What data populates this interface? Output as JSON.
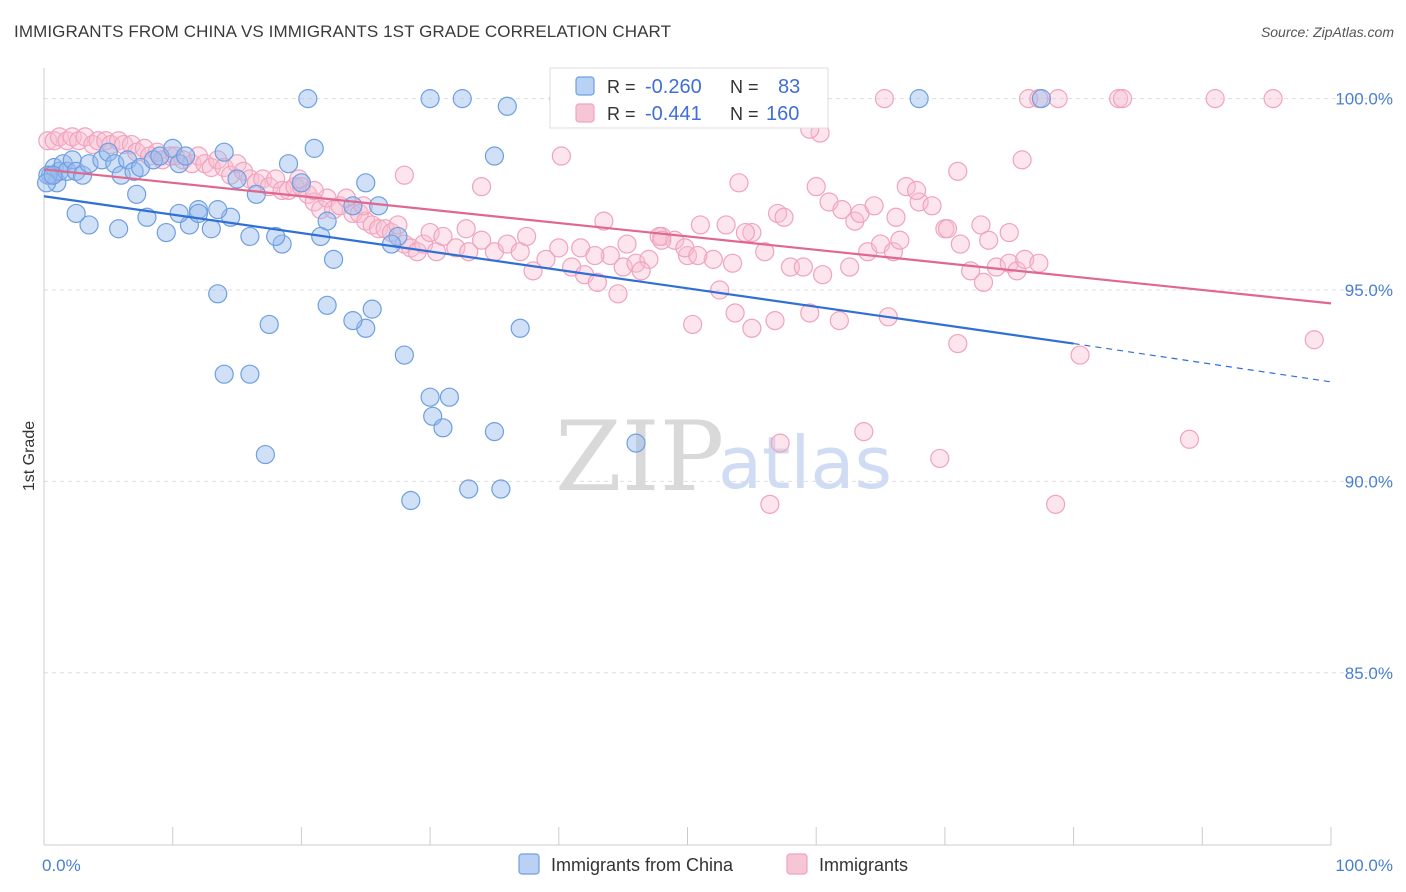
{
  "title": "IMMIGRANTS FROM CHINA VS IMMIGRANTS 1ST GRADE CORRELATION CHART",
  "source": "Source: ZipAtlas.com",
  "watermark": {
    "zip": "ZIP",
    "atlas": "atlas"
  },
  "colors": {
    "blue": "#6f9fe0",
    "blue_line": "#2f6fd6",
    "pink": "#f0a3bd",
    "pink_line": "#e0678f",
    "axis_text": "#4a7fd0"
  },
  "legend": {
    "rows": [
      {
        "r_label": "R =",
        "r_value": "-0.260",
        "n_label": "N =",
        "n_value": "83"
      },
      {
        "r_label": "R =",
        "r_value": "-0.441",
        "n_label": "N =",
        "n_value": "160"
      }
    ]
  },
  "bottom_legend": [
    "Immigrants from China",
    "Immigrants"
  ],
  "chart_data": {
    "type": "scatter",
    "xlabel": "",
    "ylabel": "1st Grade",
    "xlim": [
      0,
      100
    ],
    "ylim": [
      80.5,
      100.8
    ],
    "x_tick_labels": [
      {
        "value": 0,
        "label": "0.0%"
      },
      {
        "value": 100,
        "label": "100.0%"
      }
    ],
    "y_tick_labels": [
      {
        "value": 100,
        "label": "100.0%"
      },
      {
        "value": 95,
        "label": "95.0%"
      },
      {
        "value": 90,
        "label": "90.0%"
      },
      {
        "value": 85,
        "label": "85.0%"
      }
    ],
    "grid": true,
    "series": [
      {
        "name": "Immigrants from China",
        "r": -0.26,
        "n": 83,
        "trend": {
          "x0": 0,
          "y0": 97.45,
          "x1": 80,
          "y1": 93.6,
          "dashed_to_x": 100,
          "dashed_to_y": 92.6
        },
        "points": [
          [
            0.5,
            98.0
          ],
          [
            0.8,
            98.2
          ],
          [
            1.0,
            97.8
          ],
          [
            1.2,
            98.1
          ],
          [
            1.5,
            98.3
          ],
          [
            1.8,
            98.1
          ],
          [
            2.2,
            98.4
          ],
          [
            2.5,
            98.1
          ],
          [
            3.0,
            98.0
          ],
          [
            3.5,
            98.3
          ],
          [
            4.5,
            98.4
          ],
          [
            5.0,
            98.6
          ],
          [
            5.5,
            98.3
          ],
          [
            6.0,
            98.0
          ],
          [
            6.5,
            98.4
          ],
          [
            7.0,
            98.1
          ],
          [
            7.5,
            98.2
          ],
          [
            8.5,
            98.4
          ],
          [
            9.0,
            98.5
          ],
          [
            10.0,
            98.7
          ],
          [
            10.5,
            98.3
          ],
          [
            11.0,
            98.5
          ],
          [
            12.0,
            97.1
          ],
          [
            14.0,
            98.6
          ],
          [
            3.5,
            96.7
          ],
          [
            5.8,
            96.6
          ],
          [
            7.2,
            97.5
          ],
          [
            8.0,
            96.9
          ],
          [
            9.5,
            96.5
          ],
          [
            11.3,
            96.7
          ],
          [
            13.0,
            96.6
          ],
          [
            14.5,
            96.9
          ],
          [
            16.0,
            96.4
          ],
          [
            18.5,
            96.2
          ],
          [
            20.0,
            97.8
          ],
          [
            22.0,
            96.8
          ],
          [
            25.0,
            97.8
          ],
          [
            26.0,
            97.2
          ],
          [
            27.5,
            96.4
          ],
          [
            15.0,
            97.9
          ],
          [
            16.5,
            97.5
          ],
          [
            19.0,
            98.3
          ],
          [
            21.0,
            98.7
          ],
          [
            18.0,
            96.4
          ],
          [
            21.5,
            96.4
          ],
          [
            22.5,
            95.8
          ],
          [
            22.0,
            94.6
          ],
          [
            25.0,
            94.0
          ],
          [
            25.5,
            94.5
          ],
          [
            24.0,
            94.2
          ],
          [
            13.5,
            94.9
          ],
          [
            17.5,
            94.1
          ],
          [
            14.0,
            92.8
          ],
          [
            16.0,
            92.8
          ],
          [
            17.2,
            90.7
          ],
          [
            28.0,
            93.3
          ],
          [
            30.0,
            92.2
          ],
          [
            31.5,
            92.2
          ],
          [
            30.2,
            91.7
          ],
          [
            31.0,
            91.4
          ],
          [
            35.0,
            91.3
          ],
          [
            37.0,
            94.0
          ],
          [
            46.0,
            91.0
          ],
          [
            33.0,
            89.8
          ],
          [
            35.5,
            89.8
          ],
          [
            28.5,
            89.5
          ],
          [
            35.0,
            98.5
          ],
          [
            20.5,
            100.0
          ],
          [
            30.0,
            100.0
          ],
          [
            32.5,
            100.0
          ],
          [
            36.0,
            99.8
          ],
          [
            40.0,
            100.0
          ],
          [
            68.0,
            100.0
          ],
          [
            77.5,
            100.0
          ],
          [
            24.0,
            97.2
          ],
          [
            27.0,
            96.2
          ],
          [
            12.0,
            97.0
          ],
          [
            13.5,
            97.1
          ],
          [
            10.5,
            97.0
          ],
          [
            2.5,
            97.0
          ],
          [
            0.3,
            98.0
          ],
          [
            0.2,
            97.8
          ],
          [
            0.7,
            98.0
          ]
        ]
      },
      {
        "name": "Immigrants",
        "r": -0.441,
        "n": 160,
        "trend": {
          "x0": 0,
          "y0": 98.15,
          "x1": 100,
          "y1": 94.65
        },
        "points": [
          [
            0.3,
            98.9
          ],
          [
            0.8,
            98.9
          ],
          [
            1.2,
            99.0
          ],
          [
            1.8,
            98.9
          ],
          [
            2.2,
            99.0
          ],
          [
            2.7,
            98.9
          ],
          [
            3.2,
            99.0
          ],
          [
            3.8,
            98.8
          ],
          [
            4.2,
            98.9
          ],
          [
            4.8,
            98.9
          ],
          [
            5.2,
            98.8
          ],
          [
            5.8,
            98.9
          ],
          [
            6.2,
            98.8
          ],
          [
            6.8,
            98.8
          ],
          [
            7.2,
            98.6
          ],
          [
            7.8,
            98.7
          ],
          [
            8.2,
            98.5
          ],
          [
            8.8,
            98.6
          ],
          [
            9.2,
            98.4
          ],
          [
            9.8,
            98.5
          ],
          [
            10.2,
            98.5
          ],
          [
            10.8,
            98.4
          ],
          [
            11.5,
            98.3
          ],
          [
            12.0,
            98.5
          ],
          [
            12.5,
            98.3
          ],
          [
            13.0,
            98.2
          ],
          [
            13.5,
            98.4
          ],
          [
            14.0,
            98.2
          ],
          [
            14.5,
            98.0
          ],
          [
            15.0,
            98.3
          ],
          [
            15.5,
            98.1
          ],
          [
            16.0,
            97.9
          ],
          [
            16.5,
            97.8
          ],
          [
            17.0,
            97.9
          ],
          [
            17.5,
            97.7
          ],
          [
            18.0,
            97.9
          ],
          [
            18.5,
            97.6
          ],
          [
            19.0,
            97.6
          ],
          [
            19.5,
            97.7
          ],
          [
            20.0,
            97.7
          ],
          [
            20.5,
            97.5
          ],
          [
            21.0,
            97.3
          ],
          [
            21.5,
            97.1
          ],
          [
            22.0,
            97.4
          ],
          [
            22.5,
            97.1
          ],
          [
            23.0,
            97.2
          ],
          [
            23.5,
            97.4
          ],
          [
            24.0,
            97.0
          ],
          [
            24.5,
            97.0
          ],
          [
            25.0,
            96.8
          ],
          [
            25.5,
            96.7
          ],
          [
            26.0,
            96.6
          ],
          [
            26.5,
            96.6
          ],
          [
            27.0,
            96.5
          ],
          [
            27.5,
            96.7
          ],
          [
            28.0,
            96.2
          ],
          [
            28.5,
            96.1
          ],
          [
            29.0,
            96.0
          ],
          [
            29.5,
            96.2
          ],
          [
            30.0,
            96.5
          ],
          [
            30.5,
            96.0
          ],
          [
            31.0,
            96.4
          ],
          [
            32.0,
            96.1
          ],
          [
            33.0,
            96.0
          ],
          [
            34.0,
            96.3
          ],
          [
            35.0,
            96.0
          ],
          [
            36.0,
            96.2
          ],
          [
            37.0,
            96.0
          ],
          [
            38.0,
            95.5
          ],
          [
            39.0,
            95.8
          ],
          [
            40.0,
            96.1
          ],
          [
            41.0,
            95.6
          ],
          [
            42.0,
            95.4
          ],
          [
            43.0,
            95.2
          ],
          [
            44.0,
            95.9
          ],
          [
            45.0,
            95.6
          ],
          [
            46.0,
            95.7
          ],
          [
            47.0,
            95.8
          ],
          [
            48.0,
            96.4
          ],
          [
            49.0,
            96.3
          ],
          [
            50.0,
            95.9
          ],
          [
            51.0,
            96.7
          ],
          [
            52.0,
            95.8
          ],
          [
            53.0,
            96.7
          ],
          [
            54.0,
            97.8
          ],
          [
            55.0,
            96.5
          ],
          [
            56.0,
            96.0
          ],
          [
            57.0,
            97.0
          ],
          [
            58.0,
            95.6
          ],
          [
            59.0,
            95.6
          ],
          [
            60.0,
            97.7
          ],
          [
            61.0,
            97.3
          ],
          [
            62.0,
            97.1
          ],
          [
            63.0,
            96.8
          ],
          [
            64.0,
            96.0
          ],
          [
            65.0,
            96.2
          ],
          [
            66.0,
            96.0
          ],
          [
            67.0,
            97.7
          ],
          [
            68.0,
            97.3
          ],
          [
            69.0,
            97.2
          ],
          [
            70.0,
            96.6
          ],
          [
            71.0,
            98.1
          ],
          [
            72.0,
            95.5
          ],
          [
            73.0,
            95.2
          ],
          [
            74.0,
            95.6
          ],
          [
            75.0,
            95.7
          ],
          [
            76.0,
            98.4
          ],
          [
            34.0,
            97.7
          ],
          [
            40.2,
            98.5
          ],
          [
            32.8,
            96.6
          ],
          [
            37.5,
            96.4
          ],
          [
            43.5,
            96.8
          ],
          [
            44.6,
            94.9
          ],
          [
            47.8,
            96.4
          ],
          [
            50.4,
            94.1
          ],
          [
            52.5,
            95.0
          ],
          [
            53.7,
            94.4
          ],
          [
            55.0,
            94.0
          ],
          [
            56.8,
            94.2
          ],
          [
            57.5,
            96.9
          ],
          [
            59.5,
            94.4
          ],
          [
            61.8,
            94.2
          ],
          [
            65.6,
            94.3
          ],
          [
            66.5,
            96.3
          ],
          [
            67.8,
            97.6
          ],
          [
            70.2,
            96.6
          ],
          [
            72.8,
            96.7
          ],
          [
            73.4,
            96.3
          ],
          [
            75.6,
            95.5
          ],
          [
            75.0,
            96.5
          ],
          [
            76.2,
            95.8
          ],
          [
            77.3,
            95.7
          ],
          [
            45.3,
            96.2
          ],
          [
            46.4,
            95.5
          ],
          [
            48.0,
            96.3
          ],
          [
            49.8,
            96.1
          ],
          [
            50.8,
            95.9
          ],
          [
            41.7,
            96.1
          ],
          [
            42.8,
            95.9
          ],
          [
            53.5,
            95.7
          ],
          [
            54.5,
            96.5
          ],
          [
            60.5,
            95.4
          ],
          [
            62.6,
            95.6
          ],
          [
            63.4,
            97.0
          ],
          [
            64.5,
            97.2
          ],
          [
            66.2,
            96.9
          ],
          [
            71.2,
            96.2
          ],
          [
            80.5,
            93.3
          ],
          [
            98.7,
            93.7
          ],
          [
            71.0,
            93.6
          ],
          [
            57.2,
            91.0
          ],
          [
            63.7,
            91.3
          ],
          [
            69.6,
            90.6
          ],
          [
            89.0,
            91.1
          ],
          [
            56.4,
            89.4
          ],
          [
            78.6,
            89.4
          ],
          [
            65.3,
            100.0
          ],
          [
            76.5,
            100.0
          ],
          [
            77.3,
            100.0
          ],
          [
            78.8,
            100.0
          ],
          [
            83.5,
            100.0
          ],
          [
            91.0,
            100.0
          ],
          [
            95.5,
            100.0
          ],
          [
            83.8,
            100.0
          ],
          [
            60.3,
            99.1
          ],
          [
            59.5,
            99.2
          ],
          [
            28.0,
            98.0
          ],
          [
            24.8,
            97.2
          ],
          [
            21.0,
            97.6
          ],
          [
            19.8,
            97.9
          ]
        ]
      }
    ]
  }
}
